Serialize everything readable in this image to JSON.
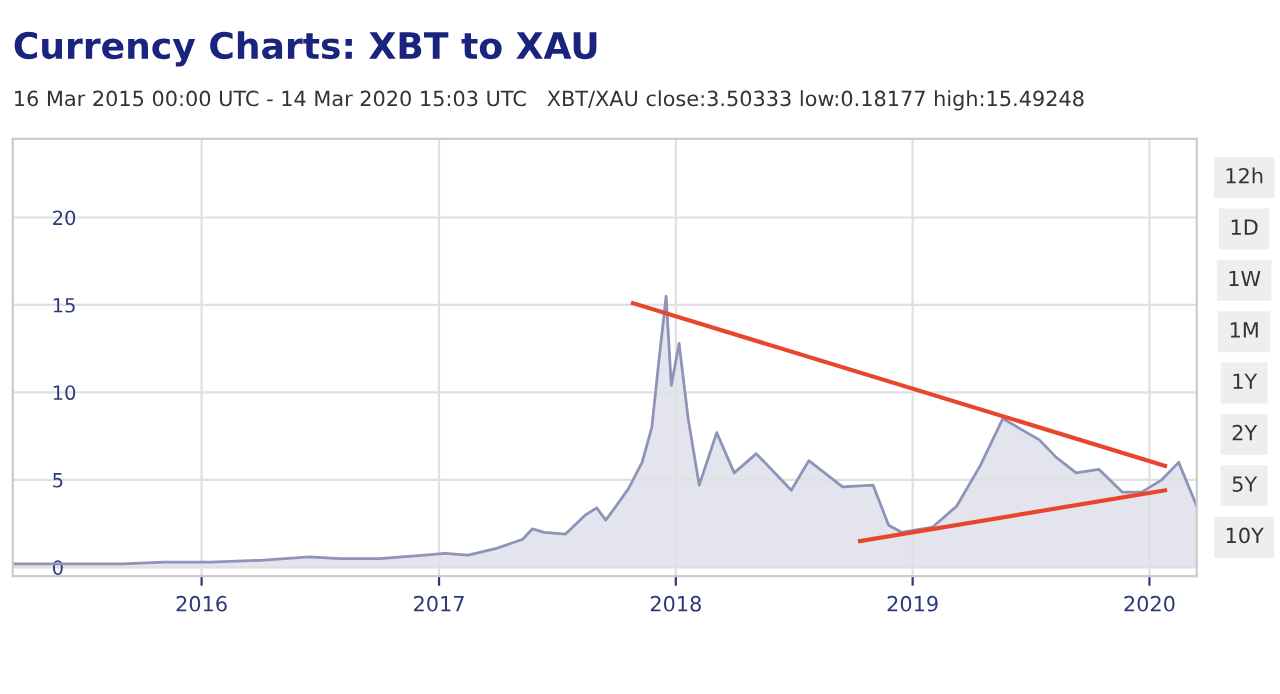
{
  "chart_data": {
    "type": "area",
    "title": "Currency Charts: XBT to XAU",
    "subtitle": "16 Mar 2015 00:00 UTC - 14 Mar 2020 15:03 UTC   XBT/XAU close:3.50333 low:0.18177 high:15.49248",
    "xlim": [
      "2015-03-16",
      "2020-03-14"
    ],
    "xticks": [
      {
        "value": "2016-01-01",
        "label": "2016"
      },
      {
        "value": "2017-01-01",
        "label": "2017"
      },
      {
        "value": "2018-01-01",
        "label": "2018"
      },
      {
        "value": "2019-01-01",
        "label": "2019"
      },
      {
        "value": "2020-01-01",
        "label": "2020"
      }
    ],
    "ylim": [
      -0.5,
      24.5
    ],
    "yticks": [
      0,
      5,
      10,
      15,
      20
    ],
    "grid": true,
    "series": [
      {
        "color": "#8e93b8",
        "x": [
          "2015-03-16",
          "2015-06-01",
          "2015-09-01",
          "2015-11-05",
          "2016-01-15",
          "2016-04-01",
          "2016-06-15",
          "2016-08-01",
          "2016-10-01",
          "2016-12-10",
          "2017-01-10",
          "2017-02-15",
          "2017-04-01",
          "2017-05-10",
          "2017-05-25",
          "2017-06-12",
          "2017-07-15",
          "2017-08-15",
          "2017-09-01",
          "2017-09-15",
          "2017-10-01",
          "2017-10-20",
          "2017-11-10",
          "2017-11-25",
          "2017-12-05",
          "2017-12-17",
          "2017-12-25",
          "2018-01-06",
          "2018-01-20",
          "2018-02-06",
          "2018-03-05",
          "2018-04-01",
          "2018-05-05",
          "2018-06-28",
          "2018-07-25",
          "2018-09-15",
          "2018-11-01",
          "2018-11-25",
          "2018-12-15",
          "2019-02-01",
          "2019-03-10",
          "2019-04-15",
          "2019-05-20",
          "2019-06-26",
          "2019-07-15",
          "2019-08-10",
          "2019-09-10",
          "2019-10-15",
          "2019-11-20",
          "2019-12-20",
          "2020-01-20",
          "2020-02-15",
          "2020-03-14"
        ],
        "values": [
          0.2,
          0.2,
          0.2,
          0.3,
          0.3,
          0.4,
          0.6,
          0.5,
          0.5,
          0.7,
          0.8,
          0.7,
          1.1,
          1.6,
          2.2,
          2.0,
          1.9,
          3.0,
          3.4,
          2.7,
          3.5,
          4.5,
          6.0,
          8.0,
          11.5,
          15.5,
          10.4,
          12.8,
          8.5,
          4.7,
          7.7,
          5.4,
          6.5,
          4.4,
          6.1,
          4.6,
          4.7,
          2.4,
          2.0,
          2.3,
          3.5,
          5.8,
          8.5,
          7.7,
          7.3,
          6.3,
          5.4,
          5.6,
          4.3,
          4.3,
          5.0,
          6.0,
          3.5
        ]
      },
      {
        "type": "line",
        "color": "#e8452c",
        "x": [
          "2017-10-27",
          "2020-01-25"
        ],
        "values": [
          15.1,
          5.8
        ]
      },
      {
        "type": "line",
        "color": "#e8452c",
        "x": [
          "2018-10-12",
          "2020-01-25"
        ],
        "values": [
          1.5,
          4.4
        ]
      }
    ],
    "annotations": [
      "12h",
      "1D",
      "1W",
      "1M",
      "1Y",
      "2Y",
      "5Y",
      "10Y"
    ]
  }
}
